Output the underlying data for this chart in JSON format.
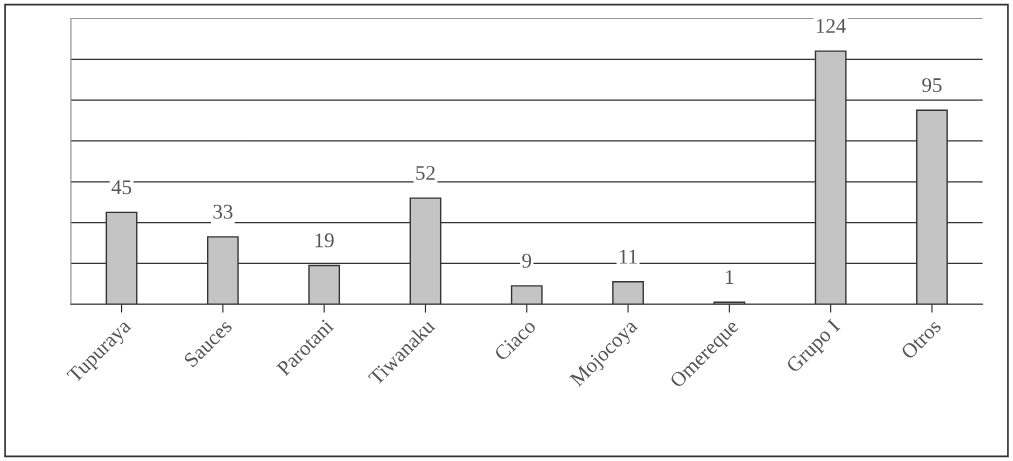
{
  "chart_data": {
    "type": "bar",
    "categories": [
      "Tupuraya",
      "Sauces",
      "Parotani",
      "Tiwanaku",
      "Ciaco",
      "Mojocoya",
      "Omereque",
      "Grupo I",
      "Otros"
    ],
    "values": [
      45,
      33,
      19,
      52,
      9,
      11,
      1,
      124,
      95
    ],
    "color": "#c4c4c4",
    "ylim": [
      0,
      140
    ],
    "yticks": [
      {
        "value": 0,
        "label": null
      },
      {
        "value": 20,
        "label": null
      },
      {
        "value": 40,
        "label": null
      },
      {
        "value": 60,
        "label": null
      },
      {
        "value": 80,
        "label": null
      },
      {
        "value": 100,
        "label": null
      },
      {
        "value": 120,
        "label": null
      },
      {
        "value": 140,
        "label": null
      }
    ],
    "tick_labels": "x",
    "grid": "y",
    "data_labels": true
  }
}
